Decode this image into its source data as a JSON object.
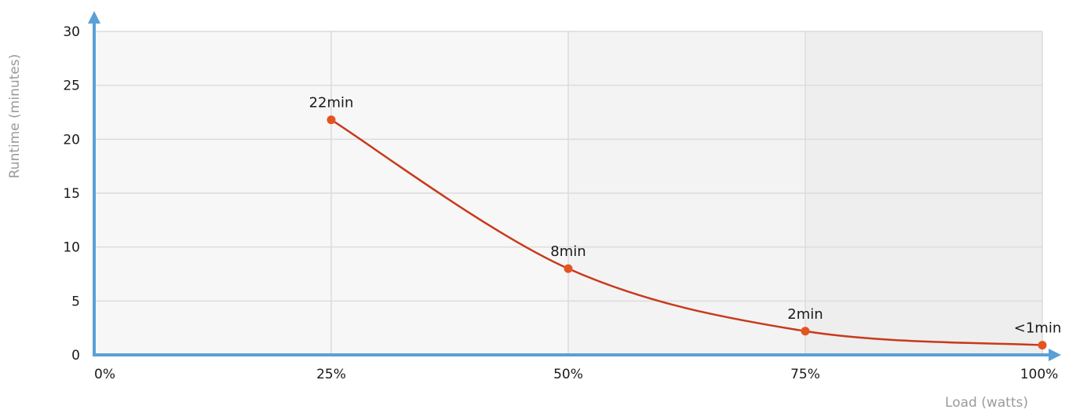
{
  "chart_data": {
    "type": "line",
    "title": "",
    "xlabel": "Load (watts)",
    "ylabel": "Runtime (minutes)",
    "x_tick_labels": [
      "0%",
      "25%",
      "50%",
      "75%",
      "100%"
    ],
    "x_tick_values": [
      0,
      25,
      50,
      75,
      100
    ],
    "y_tick_labels": [
      "0",
      "5",
      "10",
      "15",
      "20",
      "25",
      "30"
    ],
    "y_tick_values": [
      0,
      5,
      10,
      15,
      20,
      25,
      30
    ],
    "xlim": [
      0,
      100
    ],
    "ylim": [
      0,
      30
    ],
    "grid": true,
    "smooth": true,
    "series": [
      {
        "x": [
          25,
          50,
          75,
          100
        ],
        "values": [
          21.8,
          8.0,
          2.2,
          0.9
        ],
        "labels": [
          "22min",
          "8min",
          "2min",
          "<1min"
        ]
      }
    ],
    "background_bands": [
      {
        "from": 0,
        "to": 50,
        "color": "#f7f7f7"
      },
      {
        "from": 50,
        "to": 75,
        "color": "#f3f3f3"
      },
      {
        "from": 75,
        "to": 100,
        "color": "#eeeeee"
      }
    ],
    "colors": {
      "axis": "#5aa0d6",
      "line": "#c83a1c",
      "point": "#e5541f",
      "grid": "#dcdcdc"
    }
  }
}
